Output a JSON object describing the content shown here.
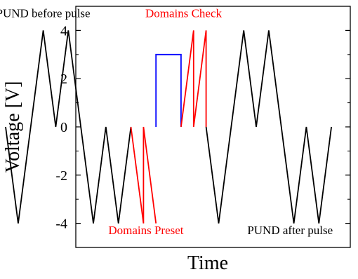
{
  "chart_data": {
    "type": "line",
    "xlabel": "Time",
    "ylabel": "Voltage [V]",
    "ylim": [
      -5,
      5
    ],
    "xlim": [
      0,
      27
    ],
    "y_ticks": [
      4,
      2,
      0,
      -2,
      -4
    ],
    "y_tick_labels": [
      "4",
      "2",
      "0",
      "-2",
      "-4"
    ],
    "x_ticks_shown": false,
    "grid": false,
    "legend": "none",
    "series": [
      {
        "color": "#000000",
        "points": [
          [
            0,
            0
          ],
          [
            1,
            -4
          ],
          [
            3,
            4
          ],
          [
            4,
            0
          ],
          [
            5,
            4
          ],
          [
            7,
            -4
          ],
          [
            8,
            0
          ],
          [
            9,
            -4
          ],
          [
            10,
            0
          ]
        ]
      },
      {
        "color": "#ff0000",
        "points": [
          [
            10,
            0
          ],
          [
            11,
            -4
          ],
          [
            11,
            0
          ],
          [
            12,
            -4
          ]
        ]
      },
      {
        "color": "#0000ff",
        "points": [
          [
            12,
            0
          ],
          [
            12,
            3
          ],
          [
            14,
            3
          ],
          [
            14,
            0
          ]
        ]
      },
      {
        "color": "#ff0000",
        "points": [
          [
            14,
            0
          ],
          [
            15,
            4
          ],
          [
            15,
            0
          ],
          [
            16,
            4
          ],
          [
            16,
            0
          ]
        ]
      },
      {
        "color": "#000000",
        "points": [
          [
            16,
            0
          ],
          [
            17,
            -4
          ],
          [
            19,
            4
          ],
          [
            20,
            0
          ],
          [
            21,
            4
          ],
          [
            23,
            -4
          ],
          [
            24,
            0
          ],
          [
            25,
            -4
          ],
          [
            26,
            0
          ]
        ]
      }
    ],
    "annotations": [
      {
        "text": "PUND before pulse",
        "color": "#000000",
        "x": 3.0,
        "y": 4.55
      },
      {
        "text": "Domains Check",
        "color": "#ff0000",
        "x": 14.2,
        "y": 4.55
      },
      {
        "text": "Domains Preset",
        "color": "#ff0000",
        "x": 11.2,
        "y": -4.45
      },
      {
        "text": "PUND after pulse",
        "color": "#000000",
        "x": 22.7,
        "y": -4.45
      }
    ]
  }
}
